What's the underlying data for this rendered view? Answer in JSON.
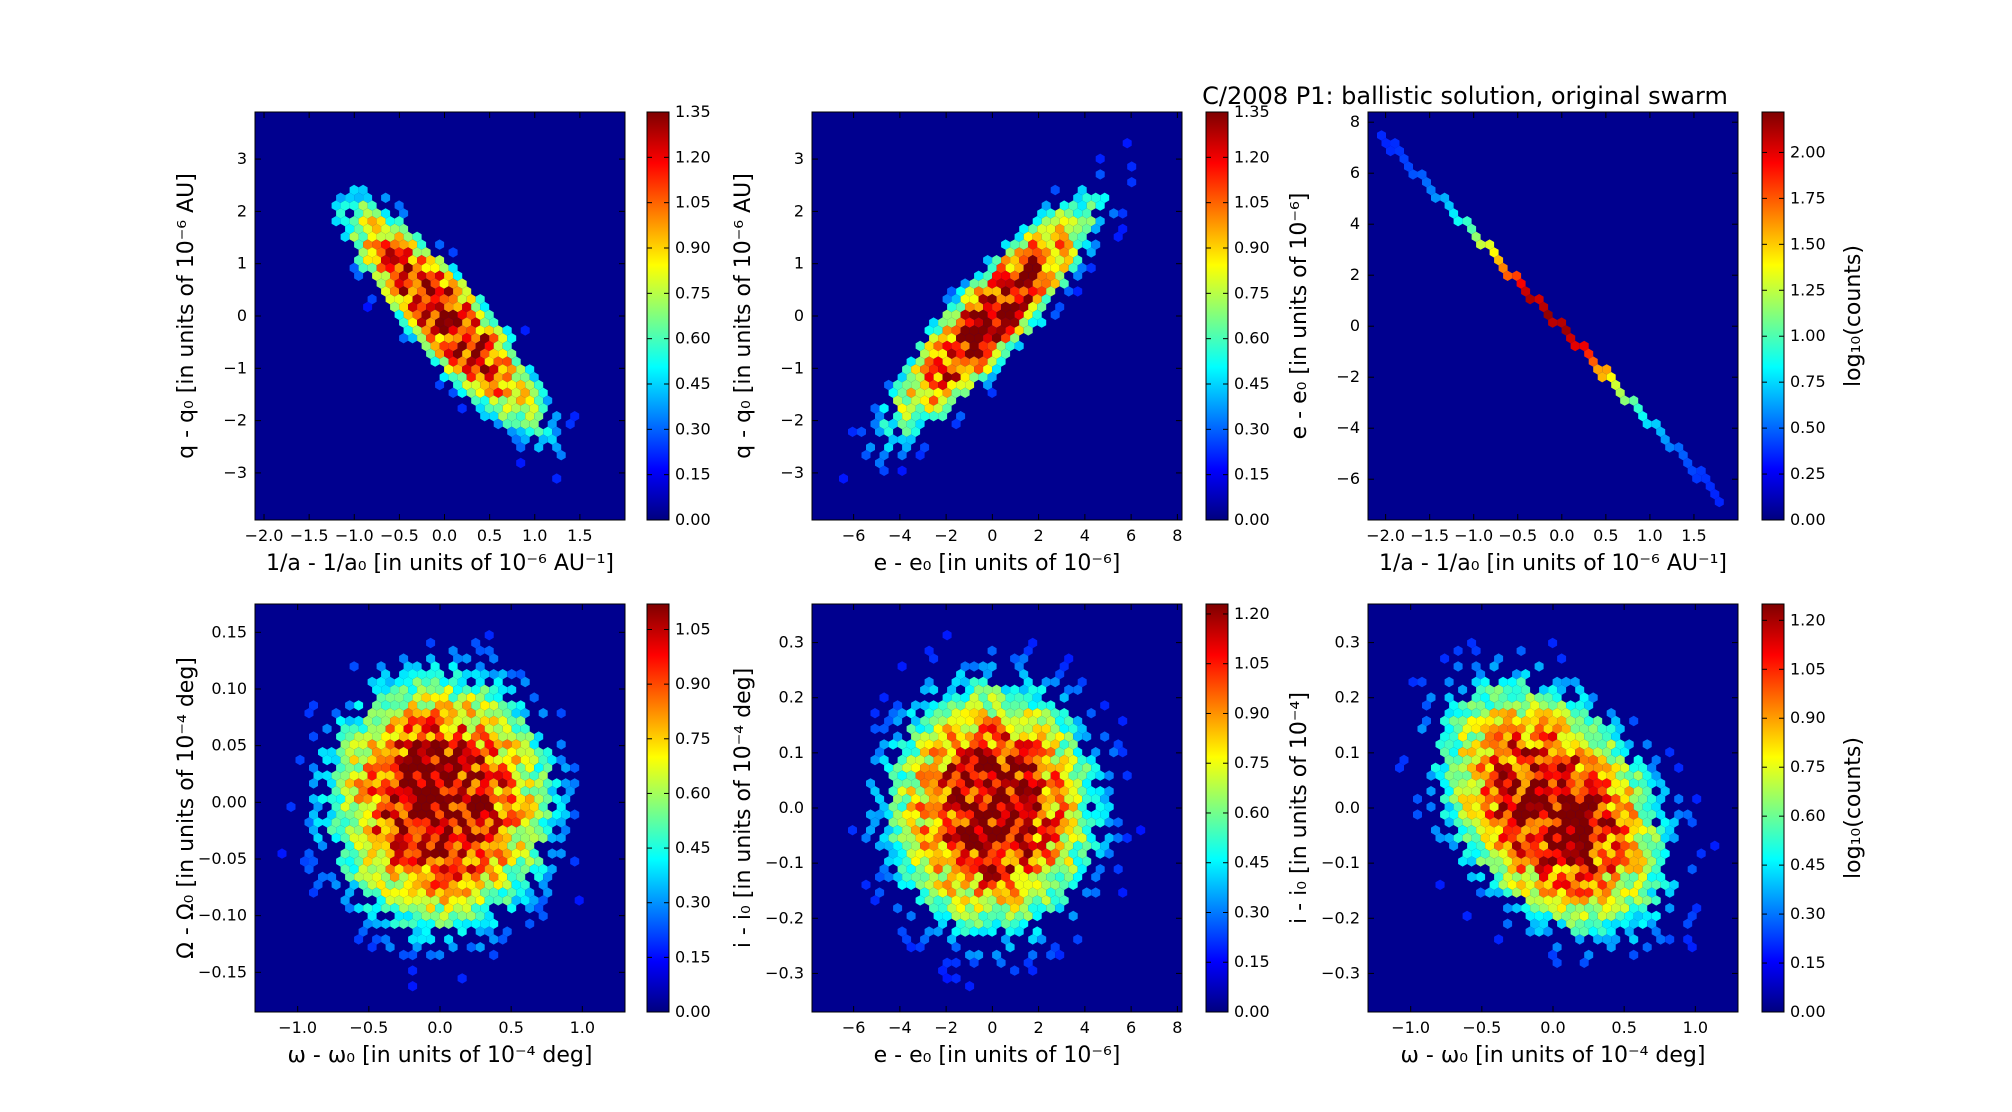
{
  "figure_title": "C/2008 P1: ballistic solution, original swarm",
  "colors": {
    "background": "#00008f",
    "colormap": [
      "#00007f",
      "#0000ff",
      "#007fff",
      "#00ffff",
      "#7fff7f",
      "#ffff00",
      "#ff7f00",
      "#ff0000",
      "#7f0000"
    ]
  },
  "chart_data": [
    {
      "type": "heatmap",
      "subtype": "hexbin",
      "title": "",
      "xlabel": "1/a - 1/a₀ [in units of 10⁻⁶ AU⁻¹]",
      "ylabel": "q - q₀ [in units of 10⁻⁶ AU]",
      "xlim": [
        -2.1,
        2.0
      ],
      "ylim": [
        -3.9,
        3.9
      ],
      "xticks": [
        -2.0,
        -1.5,
        -1.0,
        -0.5,
        0.0,
        0.5,
        1.0,
        1.5
      ],
      "xtick_labels": [
        "−2.0",
        "−1.5",
        "−1.0",
        "−0.5",
        "0.0",
        "0.5",
        "1.0",
        "1.5"
      ],
      "yticks": [
        -3,
        -2,
        -1,
        0,
        1,
        2,
        3
      ],
      "ytick_labels": [
        "−3",
        "−2",
        "−1",
        "0",
        "1",
        "2",
        "3"
      ],
      "distribution": {
        "mean_x": 0.0,
        "mean_y": 0.0,
        "sigma_x": 0.5,
        "sigma_y": 1.0,
        "correlation": -0.88
      },
      "colorbar": {
        "label": "",
        "range": [
          0.0,
          1.35
        ],
        "ticks": [
          0.0,
          0.15,
          0.3,
          0.45,
          0.6,
          0.75,
          0.9,
          1.05,
          1.2,
          1.35
        ],
        "tick_labels": [
          "0.00",
          "0.15",
          "0.30",
          "0.45",
          "0.60",
          "0.75",
          "0.90",
          "1.05",
          "1.20",
          "1.35"
        ]
      }
    },
    {
      "type": "heatmap",
      "subtype": "hexbin",
      "title": "",
      "xlabel": "e - e₀ [in units of 10⁻⁶]",
      "ylabel": "q - q₀ [in units of 10⁻⁶ AU]",
      "xlim": [
        -7.8,
        8.2
      ],
      "ylim": [
        -3.9,
        3.9
      ],
      "xticks": [
        -6,
        -4,
        -2,
        0,
        2,
        4,
        6,
        8
      ],
      "xtick_labels": [
        "−6",
        "−4",
        "−2",
        "0",
        "2",
        "4",
        "6",
        "8"
      ],
      "yticks": [
        -3,
        -2,
        -1,
        0,
        1,
        2,
        3
      ],
      "ytick_labels": [
        "−3",
        "−2",
        "−1",
        "0",
        "1",
        "2",
        "3"
      ],
      "distribution": {
        "mean_x": 0.0,
        "mean_y": 0.0,
        "sigma_x": 2.0,
        "sigma_y": 1.0,
        "correlation": 0.88
      },
      "colorbar": {
        "label": "",
        "range": [
          0.0,
          1.35
        ],
        "ticks": [
          0.0,
          0.15,
          0.3,
          0.45,
          0.6,
          0.75,
          0.9,
          1.05,
          1.2,
          1.35
        ],
        "tick_labels": [
          "0.00",
          "0.15",
          "0.30",
          "0.45",
          "0.60",
          "0.75",
          "0.90",
          "1.05",
          "1.20",
          "1.35"
        ]
      }
    },
    {
      "type": "heatmap",
      "subtype": "hexbin",
      "title": "C/2008 P1: ballistic solution, original swarm",
      "xlabel": "1/a - 1/a₀ [in units of 10⁻⁶ AU⁻¹]",
      "ylabel": "e - e₀ [in units of 10⁻⁶]",
      "xlim": [
        -2.2,
        2.0
      ],
      "ylim": [
        -7.6,
        8.4
      ],
      "xticks": [
        -2.0,
        -1.5,
        -1.0,
        -0.5,
        0.0,
        0.5,
        1.0,
        1.5
      ],
      "xtick_labels": [
        "−2.0",
        "−1.5",
        "−1.0",
        "−0.5",
        "0.0",
        "0.5",
        "1.0",
        "1.5"
      ],
      "yticks": [
        -6,
        -4,
        -2,
        0,
        2,
        4,
        6,
        8
      ],
      "ytick_labels": [
        "−6",
        "−4",
        "−2",
        "0",
        "2",
        "4",
        "6",
        "8"
      ],
      "distribution": {
        "line_from": [
          -2.1,
          7.7
        ],
        "line_to": [
          1.85,
          -6.9
        ],
        "note": ""
      },
      "colorbar": {
        "label": "log₁₀(counts)",
        "range": [
          0.0,
          2.22
        ],
        "ticks": [
          0.0,
          0.25,
          0.5,
          0.75,
          1.0,
          1.25,
          1.5,
          1.75,
          2.0
        ],
        "tick_labels": [
          "0.00",
          "0.25",
          "0.50",
          "0.75",
          "1.00",
          "1.25",
          "1.50",
          "1.75",
          "2.00"
        ]
      }
    },
    {
      "type": "heatmap",
      "subtype": "hexbin",
      "title": "",
      "xlabel": "ω - ω₀ [in units of 10⁻⁴ deg]",
      "ylabel": "Ω - Ω₀ [in units of 10⁻⁴ deg]",
      "xlim": [
        -1.3,
        1.3
      ],
      "ylim": [
        -0.185,
        0.175
      ],
      "xticks": [
        -1.0,
        -0.5,
        0.0,
        0.5,
        1.0
      ],
      "xtick_labels": [
        "−1.0",
        "−0.5",
        "0.0",
        "0.5",
        "1.0"
      ],
      "yticks": [
        -0.15,
        -0.1,
        -0.05,
        0.0,
        0.05,
        0.1,
        0.15
      ],
      "ytick_labels": [
        "−0.15",
        "−0.10",
        "−0.05",
        "0.00",
        "0.05",
        "0.10",
        "0.15"
      ],
      "distribution": {
        "mean_x": 0.0,
        "mean_y": 0.0,
        "sigma_x": 0.35,
        "sigma_y": 0.05,
        "correlation": 0.0
      },
      "colorbar": {
        "label": "",
        "range": [
          0.0,
          1.12
        ],
        "ticks": [
          0.0,
          0.15,
          0.3,
          0.45,
          0.6,
          0.75,
          0.9,
          1.05
        ],
        "tick_labels": [
          "0.00",
          "0.15",
          "0.30",
          "0.45",
          "0.60",
          "0.75",
          "0.90",
          "1.05"
        ]
      }
    },
    {
      "type": "heatmap",
      "subtype": "hexbin",
      "title": "",
      "xlabel": "e - e₀ [in units of 10⁻⁶]",
      "ylabel": "i - i₀ [in units of 10⁻⁴ deg]",
      "xlim": [
        -7.8,
        8.2
      ],
      "ylim": [
        -0.37,
        0.37
      ],
      "xticks": [
        -6,
        -4,
        -2,
        0,
        2,
        4,
        6,
        8
      ],
      "xtick_labels": [
        "−6",
        "−4",
        "−2",
        "0",
        "2",
        "4",
        "6",
        "8"
      ],
      "yticks": [
        -0.3,
        -0.2,
        -0.1,
        0.0,
        0.1,
        0.2,
        0.3
      ],
      "ytick_labels": [
        "−0.3",
        "−0.2",
        "−0.1",
        "0.0",
        "0.1",
        "0.2",
        "0.3"
      ],
      "distribution": {
        "mean_x": 0.0,
        "mean_y": 0.0,
        "sigma_x": 2.0,
        "sigma_y": 0.1,
        "correlation": 0.0
      },
      "colorbar": {
        "label": "",
        "range": [
          0.0,
          1.23
        ],
        "ticks": [
          0.0,
          0.15,
          0.3,
          0.45,
          0.6,
          0.75,
          0.9,
          1.05,
          1.2
        ],
        "tick_labels": [
          "0.00",
          "0.15",
          "0.30",
          "0.45",
          "0.60",
          "0.75",
          "0.90",
          "1.05",
          "1.20"
        ]
      }
    },
    {
      "type": "heatmap",
      "subtype": "hexbin",
      "title": "",
      "xlabel": "ω - ω₀ [in units of 10⁻⁴ deg]",
      "ylabel": "i - i₀ [in units of 10⁻⁴]",
      "xlim": [
        -1.3,
        1.3
      ],
      "ylim": [
        -0.37,
        0.37
      ],
      "xticks": [
        -1.0,
        -0.5,
        0.0,
        0.5,
        1.0
      ],
      "xtick_labels": [
        "−1.0",
        "−0.5",
        "0.0",
        "0.5",
        "1.0"
      ],
      "yticks": [
        -0.3,
        -0.2,
        -0.1,
        0.0,
        0.1,
        0.2,
        0.3
      ],
      "ytick_labels": [
        "−0.3",
        "−0.2",
        "−0.1",
        "0.0",
        "0.1",
        "0.2",
        "0.3"
      ],
      "distribution": {
        "mean_x": 0.0,
        "mean_y": 0.0,
        "sigma_x": 0.35,
        "sigma_y": 0.1,
        "correlation": -0.35
      },
      "colorbar": {
        "label": "log₁₀(counts)",
        "range": [
          0.0,
          1.25
        ],
        "ticks": [
          0.0,
          0.15,
          0.3,
          0.45,
          0.6,
          0.75,
          0.9,
          1.05,
          1.2
        ],
        "tick_labels": [
          "0.00",
          "0.15",
          "0.30",
          "0.45",
          "0.60",
          "0.75",
          "0.90",
          "1.05",
          "1.20"
        ]
      }
    }
  ]
}
